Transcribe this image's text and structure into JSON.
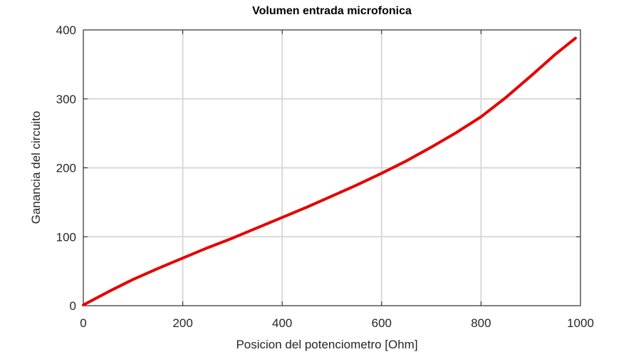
{
  "chart_data": {
    "type": "line",
    "title": "Volumen entrada microfonica",
    "xlabel": "Posicion del potenciometro [Ohm]",
    "ylabel": "Ganancia del circuito",
    "xlim": [
      0,
      1000
    ],
    "ylim": [
      0,
      400
    ],
    "xticks": [
      0,
      200,
      400,
      600,
      800,
      1000
    ],
    "yticks": [
      0,
      100,
      200,
      300,
      400
    ],
    "xtick_labels": [
      "0",
      "200",
      "400",
      "600",
      "800",
      "1000"
    ],
    "ytick_labels": [
      "0",
      "100",
      "200",
      "300",
      "400"
    ],
    "grid": true,
    "series": [
      {
        "color": "#e60000",
        "x": [
          0,
          50,
          100,
          150,
          200,
          250,
          300,
          350,
          400,
          450,
          500,
          550,
          600,
          650,
          700,
          750,
          800,
          850,
          900,
          950,
          990
        ],
        "y": [
          1,
          20,
          38,
          54,
          69,
          84,
          98,
          113,
          128,
          143,
          159,
          175,
          192,
          210,
          230,
          251,
          274,
          302,
          333,
          365,
          388
        ]
      }
    ]
  }
}
